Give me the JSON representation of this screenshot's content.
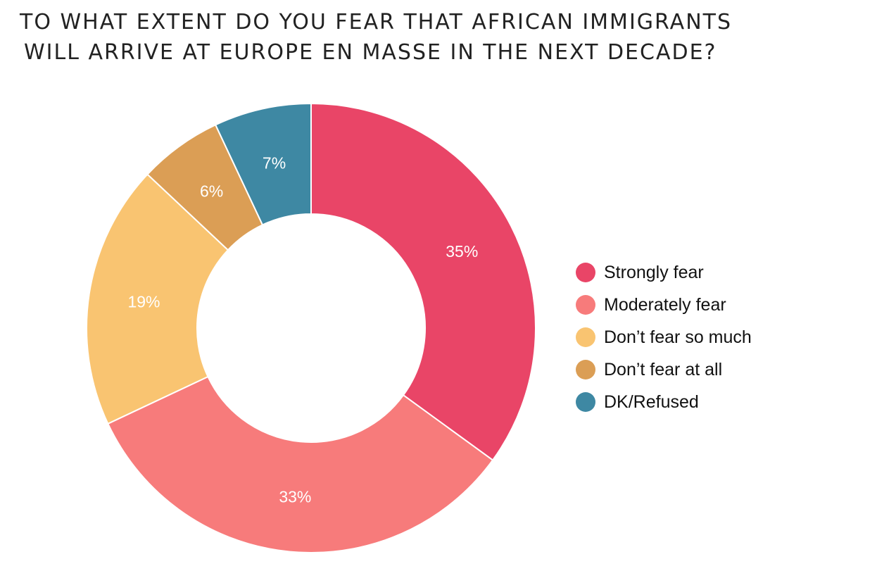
{
  "title": {
    "line1": "TO WHAT EXTENT DO YOU FEAR THAT AFRICAN IMMIGRANTS",
    "line2": "WILL ARRIVE AT EUROPE EN MASSE IN THE NEXT DECADE?"
  },
  "chart_data": {
    "type": "pie",
    "donut": true,
    "title": "TO WHAT EXTENT DO YOU FEAR THAT AFRICAN IMMIGRANTS WILL ARRIVE AT EUROPE EN MASSE IN THE NEXT DECADE?",
    "unit": "%",
    "start_angle_deg": 0,
    "direction": "clockwise",
    "legend_position": "right",
    "slices": [
      {
        "label": "Strongly fear",
        "value": 35,
        "data_label": "35%",
        "color": "#E94567"
      },
      {
        "label": "Moderately fear",
        "value": 33,
        "data_label": "33%",
        "color": "#F77B7B"
      },
      {
        "label": "Don’t fear so much",
        "value": 19,
        "data_label": "19%",
        "color": "#F9C471"
      },
      {
        "label": "Don’t fear at all",
        "value": 6,
        "data_label": "6%",
        "color": "#DB9E55"
      },
      {
        "label": "DK/Refused",
        "value": 7,
        "data_label": "7%",
        "color": "#3E88A3"
      }
    ]
  }
}
